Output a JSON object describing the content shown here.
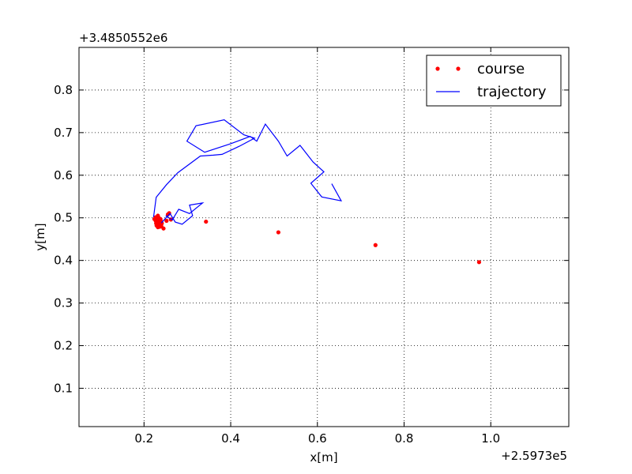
{
  "chart_data": {
    "type": "line",
    "title": "",
    "xlabel": "x[m]",
    "ylabel": "y[m]",
    "x_offset_label": "+2.5973e5",
    "y_offset_label": "+3.4850552e6",
    "xlim": [
      0.05,
      1.18
    ],
    "ylim": [
      0.01,
      0.9
    ],
    "x_ticks": [
      0.2,
      0.4,
      0.6,
      0.8,
      1.0
    ],
    "x_tick_labels": [
      "0.2",
      "0.4",
      "0.6",
      "0.8",
      "1.0"
    ],
    "y_ticks": [
      0.1,
      0.2,
      0.3,
      0.4,
      0.5,
      0.6,
      0.7,
      0.8
    ],
    "y_tick_labels": [
      "0.1",
      "0.2",
      "0.3",
      "0.4",
      "0.5",
      "0.6",
      "0.7",
      "0.8"
    ],
    "grid": true,
    "legend_position": "top-right",
    "series": [
      {
        "name": "course",
        "style": "points",
        "color": "#ff0000",
        "points": [
          [
            0.973,
            0.396
          ],
          [
            0.734,
            0.436
          ],
          [
            0.51,
            0.466
          ],
          [
            0.343,
            0.491
          ],
          [
            0.262,
            0.496
          ],
          [
            0.252,
            0.493
          ],
          [
            0.245,
            0.475
          ],
          [
            0.24,
            0.48
          ],
          [
            0.235,
            0.484
          ],
          [
            0.232,
            0.478
          ],
          [
            0.228,
            0.487
          ],
          [
            0.225,
            0.498
          ],
          [
            0.23,
            0.502
          ],
          [
            0.238,
            0.497
          ],
          [
            0.226,
            0.501
          ],
          [
            0.233,
            0.49
          ],
          [
            0.229,
            0.482
          ],
          [
            0.236,
            0.479
          ],
          [
            0.241,
            0.487
          ],
          [
            0.258,
            0.511
          ],
          [
            0.255,
            0.508
          ],
          [
            0.231,
            0.495
          ],
          [
            0.227,
            0.493
          ],
          [
            0.234,
            0.5
          ],
          [
            0.239,
            0.492
          ],
          [
            0.224,
            0.497
          ],
          [
            0.232,
            0.505
          ],
          [
            0.237,
            0.485
          ]
        ]
      },
      {
        "name": "trajectory",
        "style": "line",
        "color": "#0000ff",
        "points": [
          [
            0.222,
            0.502
          ],
          [
            0.228,
            0.548
          ],
          [
            0.252,
            0.578
          ],
          [
            0.278,
            0.606
          ],
          [
            0.33,
            0.645
          ],
          [
            0.36,
            0.647
          ],
          [
            0.38,
            0.649
          ],
          [
            0.42,
            0.668
          ],
          [
            0.455,
            0.687
          ],
          [
            0.43,
            0.695
          ],
          [
            0.385,
            0.73
          ],
          [
            0.32,
            0.716
          ],
          [
            0.299,
            0.68
          ],
          [
            0.34,
            0.654
          ],
          [
            0.4,
            0.674
          ],
          [
            0.445,
            0.691
          ],
          [
            0.46,
            0.68
          ],
          [
            0.48,
            0.72
          ],
          [
            0.51,
            0.68
          ],
          [
            0.53,
            0.645
          ],
          [
            0.56,
            0.67
          ],
          [
            0.59,
            0.631
          ],
          [
            0.615,
            0.608
          ],
          [
            0.585,
            0.581
          ],
          [
            0.61,
            0.549
          ],
          [
            0.655,
            0.54
          ],
          [
            0.633,
            0.58
          ]
        ]
      },
      {
        "name": "",
        "style": "line",
        "color": "#0000ff",
        "points": [
          [
            0.24,
            0.488
          ],
          [
            0.26,
            0.51
          ],
          [
            0.272,
            0.49
          ],
          [
            0.288,
            0.485
          ],
          [
            0.312,
            0.505
          ],
          [
            0.305,
            0.53
          ],
          [
            0.335,
            0.535
          ],
          [
            0.305,
            0.51
          ],
          [
            0.28,
            0.52
          ],
          [
            0.265,
            0.495
          ],
          [
            0.25,
            0.505
          ]
        ]
      }
    ]
  }
}
